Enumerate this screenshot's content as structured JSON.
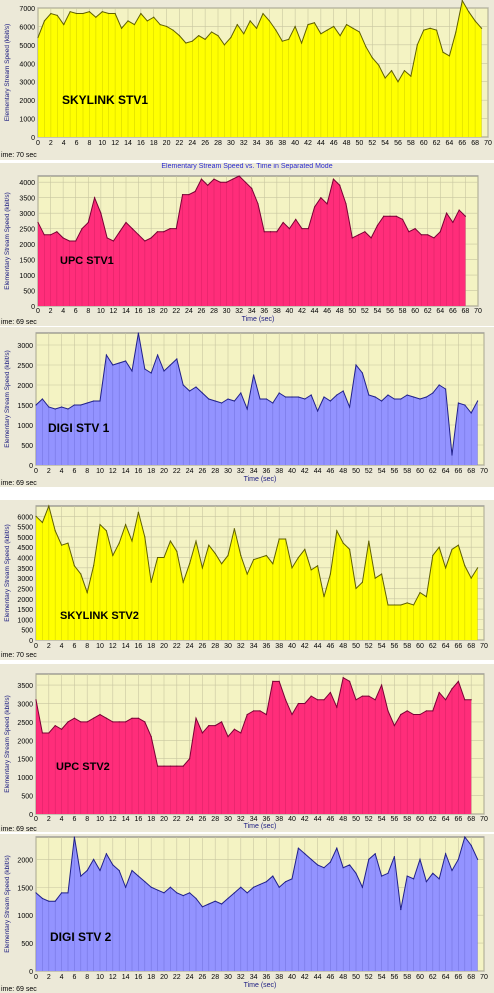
{
  "common": {
    "ylabel": "Elementary Stream Speed (kbit/s)",
    "xlabel": "Time (sec)",
    "xticks": [
      "0",
      "2",
      "4",
      "6",
      "8",
      "10",
      "12",
      "14",
      "16",
      "18",
      "20",
      "22",
      "24",
      "26",
      "28",
      "30",
      "32",
      "34",
      "36",
      "38",
      "40",
      "42",
      "44",
      "46",
      "48",
      "50",
      "52",
      "54",
      "56",
      "58",
      "60",
      "62",
      "64",
      "66",
      "68",
      "70"
    ],
    "grid": true,
    "legend": "none"
  },
  "panels": [
    {
      "status_text": "ime: 70 sec",
      "header_text": ""
    },
    {
      "status_text": "ime: 69 sec",
      "header_text": "Elementary Stream Speed vs. Time in Separated Mode"
    },
    {
      "status_text": "ime: 69 sec",
      "header_text": ""
    },
    {
      "status_text": "ime: 70 sec",
      "header_text": ""
    },
    {
      "status_text": "ime: 69 sec",
      "header_text": ""
    },
    {
      "status_text": "ime: 69 sec",
      "header_text": ""
    }
  ],
  "chart_data": [
    {
      "type": "area",
      "annotation": "SKYLINK  STV1",
      "fill_color": "#ffff00",
      "stroke_color": "#606000",
      "ylim": [
        0,
        7000
      ],
      "yticks": [
        0,
        1000,
        2000,
        3000,
        4000,
        5000,
        6000,
        7000
      ],
      "xlim": [
        0,
        70
      ],
      "x": [
        0,
        1,
        2,
        3,
        4,
        5,
        6,
        7,
        8,
        9,
        10,
        11,
        12,
        13,
        14,
        15,
        16,
        17,
        18,
        19,
        20,
        21,
        22,
        23,
        24,
        25,
        26,
        27,
        28,
        29,
        30,
        31,
        32,
        33,
        34,
        35,
        36,
        37,
        38,
        39,
        40,
        41,
        42,
        43,
        44,
        45,
        46,
        47,
        48,
        49,
        50,
        51,
        52,
        53,
        54,
        55,
        56,
        57,
        58,
        59,
        60,
        61,
        62,
        63,
        64,
        65,
        66,
        67,
        68,
        69
      ],
      "values": [
        5400,
        6300,
        6700,
        6600,
        6100,
        6800,
        6700,
        6700,
        6800,
        6500,
        6800,
        6700,
        6700,
        5900,
        6300,
        6100,
        6700,
        6300,
        6500,
        6100,
        6000,
        5800,
        5500,
        5100,
        5200,
        5500,
        5300,
        5700,
        5500,
        5000,
        5400,
        6100,
        5600,
        6300,
        5900,
        6700,
        6300,
        5800,
        5200,
        5300,
        6000,
        5100,
        6100,
        6200,
        5600,
        5800,
        6000,
        5500,
        6100,
        5900,
        5700,
        4900,
        4300,
        3900,
        3200,
        3600,
        3000,
        3600,
        3300,
        5000,
        5800,
        5900,
        5800,
        4600,
        4400,
        5700,
        7400,
        6800,
        6300,
        5900
      ]
    },
    {
      "type": "area",
      "annotation": "UPC STV1",
      "fill_color": "#ff2d7a",
      "stroke_color": "#7a0035",
      "ylim": [
        0,
        4200
      ],
      "yticks": [
        0,
        500,
        1000,
        1500,
        2000,
        2500,
        3000,
        3500,
        4000
      ],
      "xlim": [
        0,
        70
      ],
      "x": [
        0,
        1,
        2,
        3,
        4,
        5,
        6,
        7,
        8,
        9,
        10,
        11,
        12,
        13,
        14,
        15,
        16,
        17,
        18,
        19,
        20,
        21,
        22,
        23,
        24,
        25,
        26,
        27,
        28,
        29,
        30,
        31,
        32,
        33,
        34,
        35,
        36,
        37,
        38,
        39,
        40,
        41,
        42,
        43,
        44,
        45,
        46,
        47,
        48,
        49,
        50,
        51,
        52,
        53,
        54,
        55,
        56,
        57,
        58,
        59,
        60,
        61,
        62,
        63,
        64,
        65,
        66,
        67,
        68
      ],
      "values": [
        2700,
        2300,
        2300,
        2400,
        2200,
        2100,
        2100,
        2500,
        2700,
        3500,
        3000,
        2200,
        2100,
        2400,
        2700,
        2500,
        2300,
        2100,
        2200,
        2400,
        2400,
        2500,
        2500,
        3600,
        3600,
        3700,
        4100,
        3900,
        4100,
        4000,
        4000,
        4100,
        4200,
        4000,
        3800,
        3300,
        2400,
        2400,
        2400,
        2700,
        2500,
        2800,
        2500,
        2500,
        3200,
        3500,
        3300,
        4100,
        3900,
        3300,
        2200,
        2300,
        2400,
        2200,
        2600,
        2900,
        2900,
        2900,
        2800,
        2400,
        2500,
        2300,
        2300,
        2200,
        2400,
        3000,
        2700,
        3100,
        2900
      ]
    },
    {
      "type": "area",
      "annotation": "DIGI  STV 1",
      "fill_color": "#9393ff",
      "stroke_color": "#20208a",
      "ylim": [
        0,
        3300
      ],
      "yticks": [
        0,
        500,
        1000,
        1500,
        2000,
        2500,
        3000
      ],
      "xlim": [
        0,
        70
      ],
      "x": [
        0,
        1,
        2,
        3,
        4,
        5,
        6,
        7,
        8,
        9,
        10,
        11,
        12,
        13,
        14,
        15,
        16,
        17,
        18,
        19,
        20,
        21,
        22,
        23,
        24,
        25,
        26,
        27,
        28,
        29,
        30,
        31,
        32,
        33,
        34,
        35,
        36,
        37,
        38,
        39,
        40,
        41,
        42,
        43,
        44,
        45,
        46,
        47,
        48,
        49,
        50,
        51,
        52,
        53,
        54,
        55,
        56,
        57,
        58,
        59,
        60,
        61,
        62,
        63,
        64,
        65,
        66,
        67,
        68,
        69
      ],
      "values": [
        1500,
        1650,
        1450,
        1400,
        1450,
        1400,
        1500,
        1500,
        1550,
        1600,
        1600,
        2750,
        2500,
        2550,
        2600,
        2350,
        3300,
        2400,
        2300,
        2750,
        2350,
        2500,
        2650,
        2000,
        1850,
        1950,
        1800,
        1650,
        1600,
        1550,
        1650,
        1600,
        1800,
        1400,
        2250,
        1650,
        1650,
        1550,
        1800,
        1700,
        1700,
        1700,
        1650,
        1750,
        1350,
        1700,
        1600,
        1750,
        1850,
        1450,
        2500,
        2300,
        1750,
        1700,
        1600,
        1750,
        1650,
        1650,
        1750,
        1700,
        1650,
        1700,
        1800,
        2000,
        1900,
        250,
        1550,
        1500,
        1300,
        1600
      ]
    },
    {
      "type": "area",
      "annotation": "SKYLINK STV2",
      "fill_color": "#ffff00",
      "stroke_color": "#606000",
      "ylim": [
        0,
        6500
      ],
      "yticks": [
        0,
        500,
        1000,
        1500,
        2000,
        2500,
        3000,
        3500,
        4000,
        4500,
        5000,
        5500,
        6000
      ],
      "xlim": [
        0,
        70
      ],
      "x": [
        0,
        1,
        2,
        3,
        4,
        5,
        6,
        7,
        8,
        9,
        10,
        11,
        12,
        13,
        14,
        15,
        16,
        17,
        18,
        19,
        20,
        21,
        22,
        23,
        24,
        25,
        26,
        27,
        28,
        29,
        30,
        31,
        32,
        33,
        34,
        35,
        36,
        37,
        38,
        39,
        40,
        41,
        42,
        43,
        44,
        45,
        46,
        47,
        48,
        49,
        50,
        51,
        52,
        53,
        54,
        55,
        56,
        57,
        58,
        59,
        60,
        61,
        62,
        63,
        64,
        65,
        66,
        67,
        68,
        69
      ],
      "values": [
        6000,
        5700,
        6500,
        5300,
        4600,
        4700,
        3600,
        3200,
        2300,
        3600,
        5600,
        5300,
        4100,
        4700,
        5600,
        4800,
        6200,
        5000,
        2800,
        4000,
        4000,
        4800,
        4300,
        2800,
        3700,
        4800,
        3500,
        4600,
        4200,
        3700,
        4100,
        5400,
        4100,
        3200,
        3900,
        4000,
        4100,
        3700,
        4900,
        4900,
        3500,
        4000,
        4400,
        3400,
        3600,
        2100,
        3200,
        5300,
        4700,
        4400,
        2500,
        2800,
        4800,
        3000,
        3200,
        1700,
        1700,
        1700,
        1800,
        1700,
        2300,
        2100,
        4100,
        4500,
        3500,
        4400,
        4600,
        3600,
        3000,
        3500
      ]
    },
    {
      "type": "area",
      "annotation": "UPC STV2",
      "fill_color": "#ff2d7a",
      "stroke_color": "#7a0035",
      "ylim": [
        0,
        3800
      ],
      "yticks": [
        0,
        500,
        1000,
        1500,
        2000,
        2500,
        3000,
        3500
      ],
      "xlim": [
        0,
        70
      ],
      "x": [
        0,
        1,
        2,
        3,
        4,
        5,
        6,
        7,
        8,
        9,
        10,
        11,
        12,
        13,
        14,
        15,
        16,
        17,
        18,
        19,
        20,
        21,
        22,
        23,
        24,
        25,
        26,
        27,
        28,
        29,
        30,
        31,
        32,
        33,
        34,
        35,
        36,
        37,
        38,
        39,
        40,
        41,
        42,
        43,
        44,
        45,
        46,
        47,
        48,
        49,
        50,
        51,
        52,
        53,
        54,
        55,
        56,
        57,
        58,
        59,
        60,
        61,
        62,
        63,
        64,
        65,
        66,
        67,
        68
      ],
      "values": [
        3100,
        2200,
        2200,
        2400,
        2300,
        2500,
        2600,
        2500,
        2500,
        2600,
        2700,
        2600,
        2500,
        2500,
        2500,
        2600,
        2600,
        2500,
        2100,
        1300,
        1300,
        1300,
        1300,
        1300,
        1500,
        2600,
        2200,
        2400,
        2400,
        2500,
        2100,
        2300,
        2200,
        2700,
        2800,
        2800,
        2700,
        3600,
        3600,
        3100,
        2700,
        3000,
        3000,
        3200,
        3100,
        3100,
        3300,
        2900,
        3700,
        3600,
        3100,
        3200,
        3200,
        3100,
        3500,
        2800,
        2400,
        2700,
        2800,
        2700,
        2700,
        2800,
        2800,
        3300,
        3100,
        3400,
        3600,
        3100,
        3100
      ]
    },
    {
      "type": "area",
      "annotation": "DIGI  STV 2",
      "fill_color": "#9393ff",
      "stroke_color": "#20208a",
      "ylim": [
        0,
        2400
      ],
      "yticks": [
        0,
        500,
        1000,
        1500,
        2000
      ],
      "xlim": [
        0,
        70
      ],
      "x": [
        0,
        1,
        2,
        3,
        4,
        5,
        6,
        7,
        8,
        9,
        10,
        11,
        12,
        13,
        14,
        15,
        16,
        17,
        18,
        19,
        20,
        21,
        22,
        23,
        24,
        25,
        26,
        27,
        28,
        29,
        30,
        31,
        32,
        33,
        34,
        35,
        36,
        37,
        38,
        39,
        40,
        41,
        42,
        43,
        44,
        45,
        46,
        47,
        48,
        49,
        50,
        51,
        52,
        53,
        54,
        55,
        56,
        57,
        58,
        59,
        60,
        61,
        62,
        63,
        64,
        65,
        66,
        67,
        68,
        69
      ],
      "values": [
        1400,
        1300,
        1250,
        1250,
        1400,
        1400,
        2400,
        1700,
        1800,
        2000,
        1800,
        2100,
        1900,
        1800,
        1500,
        1800,
        1700,
        1600,
        1500,
        1450,
        1400,
        1500,
        1400,
        1350,
        1400,
        1300,
        1150,
        1200,
        1250,
        1200,
        1300,
        1400,
        1500,
        1400,
        1500,
        1550,
        1600,
        1700,
        1500,
        1600,
        1650,
        2200,
        2100,
        2000,
        1900,
        1850,
        1950,
        2200,
        1850,
        1900,
        1750,
        1500,
        2000,
        2100,
        1700,
        1750,
        2050,
        1100,
        1700,
        1650,
        2000,
        1600,
        1750,
        1650,
        2100,
        1800,
        2000,
        2400,
        2250,
        2000
      ]
    }
  ]
}
